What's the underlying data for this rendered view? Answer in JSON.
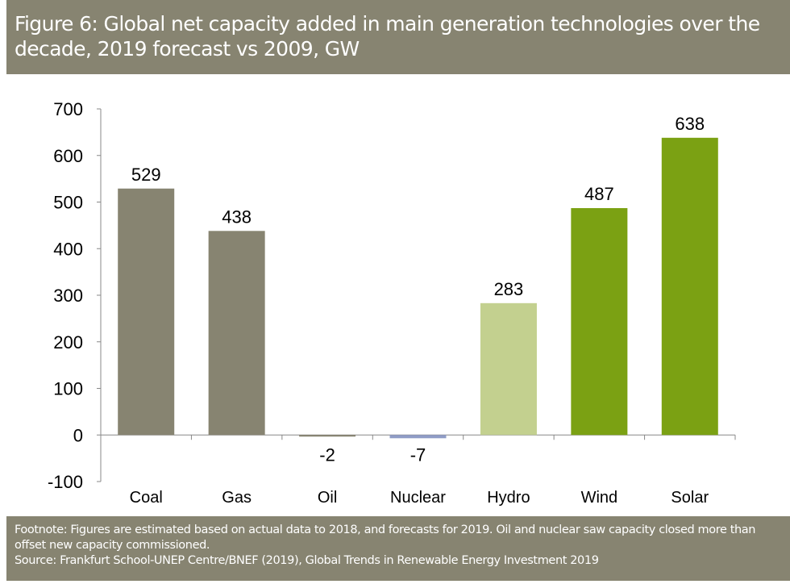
{
  "chart_data": {
    "type": "bar",
    "title": "Figure 6: Global net capacity added in main generation technologies over the decade, 2019 forecast vs 2009, GW",
    "categories": [
      "Coal",
      "Gas",
      "Oil",
      "Nuclear",
      "Hydro",
      "Wind",
      "Solar"
    ],
    "values": [
      529,
      438,
      -2,
      -7,
      283,
      487,
      638
    ],
    "data_labels": [
      "529",
      "438",
      "-2",
      "-7",
      "283",
      "487",
      "638"
    ],
    "colors": [
      "#878471",
      "#878471",
      "#878471",
      "#8f9cc6",
      "#c3d08f",
      "#7ba113",
      "#7ba113"
    ],
    "ylim": [
      -100,
      700
    ],
    "yticks": [
      -100,
      0,
      100,
      200,
      300,
      400,
      500,
      600,
      700
    ],
    "grid": false,
    "legend": "none"
  },
  "footnote": "Footnote: Figures are estimated based on actual data to 2018, and forecasts for 2019. Oil and nuclear saw capacity closed more than offset new capacity commissioned.",
  "source": "Source: Frankfurt School-UNEP Centre/BNEF (2019), Global Trends in Renewable Energy Investment 2019"
}
